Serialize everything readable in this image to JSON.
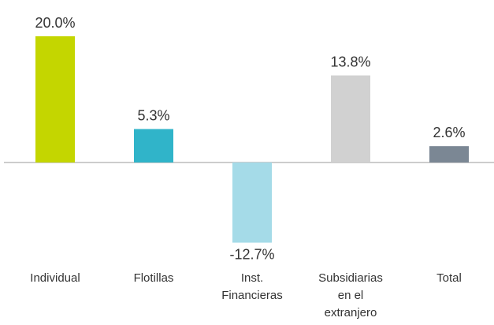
{
  "chart_data": {
    "type": "bar",
    "categories": [
      "Individual",
      "Flotillas",
      "Inst. Financieras",
      "Subsidiarias en el extranjero",
      "Total"
    ],
    "values": [
      20.0,
      5.3,
      -12.7,
      13.8,
      2.6
    ],
    "value_labels": [
      "20.0%",
      "5.3%",
      "-12.7%",
      "13.8%",
      "2.6%"
    ],
    "colors": [
      "#c4d600",
      "#30b4c9",
      "#a5dbe8",
      "#d1d1d1",
      "#7b8794"
    ]
  }
}
